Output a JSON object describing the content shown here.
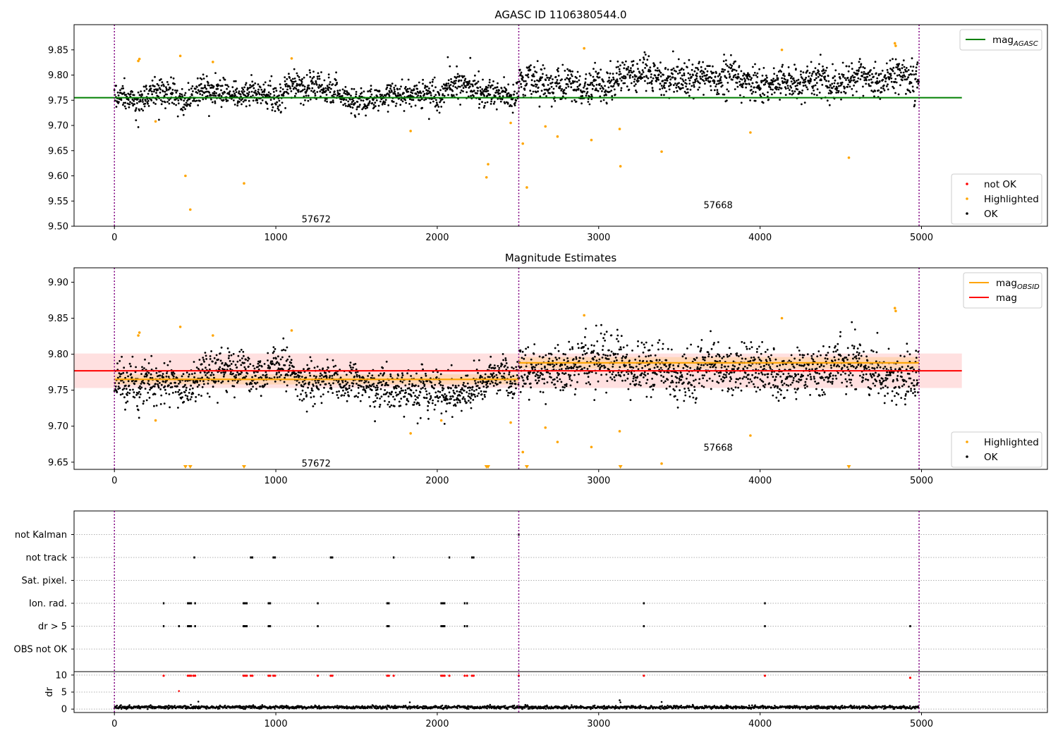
{
  "colors": {
    "ok": "#000000",
    "highlighted": "#ffa500",
    "not_ok": "#ff0000",
    "mag_agasc": "#008000",
    "mag_obsid": "#ffa500",
    "mag": "#ff0000",
    "obs_boundary": "#800080",
    "grid": "#b0b0b0"
  },
  "chart_data": [
    {
      "type": "scatter",
      "title": "AGASC ID 1106380544.0",
      "xlim": [
        -250,
        5780
      ],
      "ylim": [
        9.5,
        9.9
      ],
      "xticks": [
        0,
        1000,
        2000,
        3000,
        4000,
        5000
      ],
      "yticks": [
        9.5,
        9.55,
        9.6,
        9.65,
        9.7,
        9.75,
        9.8,
        9.85
      ],
      "observation_boundaries": [
        0,
        2505,
        4985
      ],
      "observations": [
        {
          "label": "57672",
          "x_text": 1250,
          "y_text": 9.515
        },
        {
          "label": "57668",
          "x_text": 3740,
          "y_text": 9.543
        }
      ],
      "lines": [
        {
          "name": "mag",
          "subscript": "AGASC",
          "y": 9.755,
          "x_range": [
            -250,
            5250
          ],
          "color": "#008000"
        }
      ],
      "ok_points": {
        "ranges": [
          [
            0,
            2505,
            9.764,
            0.018
          ],
          [
            2505,
            4985,
            9.786,
            0.022
          ]
        ]
      },
      "highlighted_points": [
        [
          148,
          9.828
        ],
        [
          155,
          9.832
        ],
        [
          255,
          9.708
        ],
        [
          408,
          9.838
        ],
        [
          440,
          9.6
        ],
        [
          470,
          9.533
        ],
        [
          610,
          9.826
        ],
        [
          803,
          9.585
        ],
        [
          1098,
          9.833
        ],
        [
          1835,
          9.689
        ],
        [
          2305,
          9.597
        ],
        [
          2315,
          9.623
        ],
        [
          2455,
          9.705
        ],
        [
          2530,
          9.664
        ],
        [
          2555,
          9.577
        ],
        [
          2670,
          9.698
        ],
        [
          2745,
          9.678
        ],
        [
          2910,
          9.853
        ],
        [
          2955,
          9.671
        ],
        [
          3130,
          9.693
        ],
        [
          3135,
          9.619
        ],
        [
          3390,
          9.648
        ],
        [
          3940,
          9.686
        ],
        [
          4135,
          9.85
        ],
        [
          4550,
          9.636
        ],
        [
          4835,
          9.863
        ],
        [
          4840,
          9.858
        ]
      ],
      "legend": [
        {
          "label": "mag",
          "subscript": "AGASC",
          "kind": "line",
          "color": "#008000"
        },
        {
          "label": "not OK",
          "kind": "point",
          "color": "#ff0000"
        },
        {
          "label": "Highlighted",
          "kind": "point",
          "color": "#ffa500"
        },
        {
          "label": "OK",
          "kind": "point",
          "color": "#000000"
        }
      ]
    },
    {
      "type": "scatter",
      "title": "Magnitude Estimates",
      "xlim": [
        -250,
        5780
      ],
      "ylim": [
        9.64,
        9.92
      ],
      "xticks": [
        0,
        1000,
        2000,
        3000,
        4000,
        5000
      ],
      "yticks": [
        9.65,
        9.7,
        9.75,
        9.8,
        9.85,
        9.9
      ],
      "observation_boundaries": [
        0,
        2505,
        4985
      ],
      "observations": [
        {
          "label": "57672",
          "x_text": 1250,
          "y_text": 9.649
        },
        {
          "label": "57668",
          "x_text": 3740,
          "y_text": 9.671
        }
      ],
      "lines": [
        {
          "name": "mag",
          "y": 9.777,
          "x_range": [
            -250,
            5250
          ],
          "color": "#ff0000",
          "band": [
            9.753,
            9.801
          ]
        },
        {
          "name": "mag",
          "subscript": "OBSID",
          "segments": [
            [
              0,
              2505,
              9.765,
              9.758,
              9.772
            ],
            [
              2505,
              4985,
              9.788,
              9.78,
              9.796
            ]
          ],
          "color": "#ffa500"
        }
      ],
      "ok_points": {
        "ranges": [
          [
            0,
            2505,
            9.764,
            0.018
          ],
          [
            2505,
            4985,
            9.786,
            0.022
          ]
        ]
      },
      "highlighted_points": [
        [
          148,
          9.826
        ],
        [
          155,
          9.83
        ],
        [
          255,
          9.708
        ],
        [
          408,
          9.838
        ],
        [
          610,
          9.826
        ],
        [
          1098,
          9.833
        ],
        [
          1835,
          9.69
        ],
        [
          2025,
          9.708
        ],
        [
          2455,
          9.705
        ],
        [
          2530,
          9.664
        ],
        [
          2670,
          9.698
        ],
        [
          2745,
          9.678
        ],
        [
          2910,
          9.854
        ],
        [
          2955,
          9.671
        ],
        [
          3130,
          9.693
        ],
        [
          3390,
          9.648
        ],
        [
          3940,
          9.687
        ],
        [
          4135,
          9.85
        ],
        [
          4835,
          9.864
        ],
        [
          4840,
          9.86
        ]
      ],
      "below_range_markers": [
        440,
        470,
        803,
        2305,
        2315,
        2555,
        3135,
        4550
      ],
      "legend_top": [
        {
          "label": "mag",
          "subscript": "OBSID",
          "kind": "line",
          "color": "#ffa500"
        },
        {
          "label": "mag",
          "kind": "line",
          "color": "#ff0000"
        }
      ],
      "legend_bottom": [
        {
          "label": "Highlighted",
          "kind": "point",
          "color": "#ffa500"
        },
        {
          "label": "OK",
          "kind": "point",
          "color": "#000000"
        }
      ]
    },
    {
      "type": "scatter",
      "title": "",
      "xlim": [
        -250,
        5780
      ],
      "xticks": [
        0,
        1000,
        2000,
        3000,
        4000,
        5000
      ],
      "observation_boundaries": [
        0,
        2505,
        4985
      ],
      "flag_rows": [
        "not Kalman",
        "not track",
        "Sat. pixel.",
        "Ion. rad.",
        "dr > 5",
        "OBS not OK"
      ],
      "flag_events": {
        "not Kalman": [
          2505
        ],
        "not track": [
          495,
          845,
          855,
          985,
          995,
          1340,
          1350,
          1730,
          2075,
          2215,
          2225
        ],
        "Sat. pixel.": [],
        "Ion. rad.": [
          305,
          455,
          465,
          475,
          500,
          800,
          810,
          820,
          955,
          965,
          1260,
          1690,
          1700,
          2025,
          2035,
          2045,
          2170,
          2185,
          3280,
          4030
        ],
        "dr > 5": [
          305,
          400,
          455,
          465,
          475,
          500,
          800,
          810,
          820,
          955,
          965,
          1260,
          1690,
          1700,
          2025,
          2035,
          2045,
          2170,
          2185,
          3280,
          4030,
          4930
        ],
        "OBS not OK": []
      },
      "dr_ylabel": "dr",
      "dr_yticks": [
        0,
        5,
        10
      ],
      "dr_ylim": [
        -1,
        11
      ],
      "dr_red_points": [
        305,
        455,
        465,
        475,
        490,
        500,
        800,
        810,
        820,
        845,
        855,
        955,
        965,
        985,
        995,
        1260,
        1340,
        1350,
        1690,
        1700,
        1730,
        2025,
        2035,
        2045,
        2075,
        2170,
        2185,
        2215,
        2225,
        2505,
        3280,
        4030,
        4930
      ],
      "dr_outliers": [
        [
          400,
          5.3
        ],
        [
          520,
          2.2
        ],
        [
          1830,
          2.0
        ],
        [
          3130,
          2.6
        ],
        [
          3135,
          2.0
        ],
        [
          3390,
          2.1
        ]
      ]
    }
  ]
}
